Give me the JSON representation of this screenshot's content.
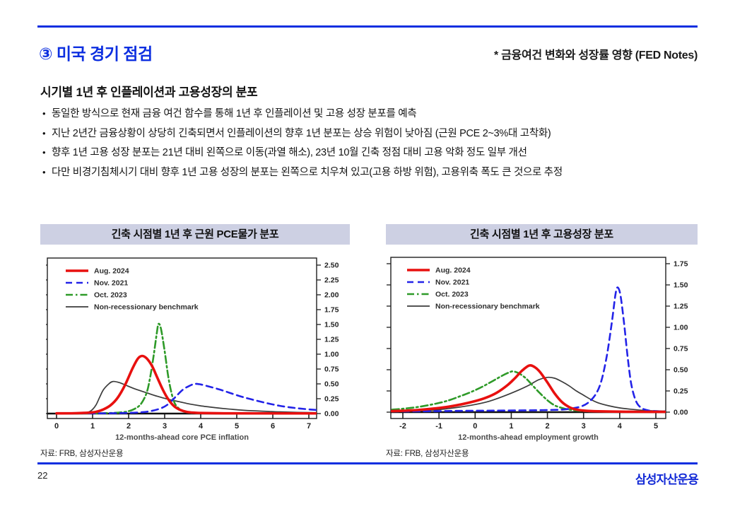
{
  "header": {
    "title": "③ 미국 경기 점검",
    "note": "* 금융여건 변화와 성장률 영향 (FED Notes)"
  },
  "subtitle": "시기별 1년 후 인플레이션과 고용성장의 분포",
  "bullets": [
    "동일한 방식으로 현재 금융 여건 함수를 통해 1년 후 인플레이션 및 고용 성장 분포를 예측",
    "지난 2년간 금융상황이 상당히 긴축되면서 인플레이션의 향후 1년 분포는 상승 위험이 낮아짐 (근원 PCE 2~3%대 고착화)",
    "향후 1년 고용 성장 분포는 21년 대비 왼쪽으로 이동(과열 해소), 23년 10월 긴축 정점 대비 고용 악화 정도 일부 개선",
    "다만 비경기침체시기 대비 향후 1년 고용 성장의 분포는 왼쪽으로 치우쳐 있고(고용 하방 위험), 고용위축 폭도 큰 것으로 추정"
  ],
  "footer": {
    "page_number": "22",
    "logo": "삼성자산운용"
  },
  "colors": {
    "accent": "#0d2fe0",
    "header_bar": "#cdd0e3",
    "series_red": "#e8100f",
    "series_blue": "#2323e8",
    "series_green": "#2e9a28",
    "series_black": "#3c3c3c"
  },
  "chart_data": [
    {
      "type": "line",
      "title": "긴축 시점별 1년 후 근원 PCE물가 분포",
      "xlabel": "12-months-ahead core PCE inflation",
      "ylabel": "",
      "source": "자료: FRB, 삼성자산운용",
      "xlim": [
        -0.27,
        7.22
      ],
      "ylim": [
        0,
        2.62
      ],
      "x_ticks": [
        0,
        1,
        2,
        3,
        4,
        5,
        6,
        7
      ],
      "y_ticks": [
        0,
        0.25,
        0.5,
        0.75,
        1.0,
        1.25,
        1.5,
        1.75,
        2.0,
        2.25,
        2.5
      ],
      "grid": false,
      "legend_position": "top-left",
      "series": [
        {
          "name": "Aug. 2024",
          "color": "#e8100f",
          "style": "solid",
          "width": 3.6,
          "points": [
            [
              0,
              0.003
            ],
            [
              0.5,
              0.006
            ],
            [
              0.9,
              0.015
            ],
            [
              1.1,
              0.03
            ],
            [
              1.3,
              0.07
            ],
            [
              1.5,
              0.14
            ],
            [
              1.7,
              0.27
            ],
            [
              1.9,
              0.48
            ],
            [
              2.1,
              0.75
            ],
            [
              2.25,
              0.92
            ],
            [
              2.37,
              0.97
            ],
            [
              2.5,
              0.93
            ],
            [
              2.65,
              0.8
            ],
            [
              2.8,
              0.6
            ],
            [
              2.95,
              0.4
            ],
            [
              3.1,
              0.24
            ],
            [
              3.25,
              0.13
            ],
            [
              3.4,
              0.07
            ],
            [
              3.6,
              0.03
            ],
            [
              3.8,
              0.015
            ],
            [
              4.0,
              0.01
            ],
            [
              4.5,
              0.005
            ],
            [
              5,
              0.003
            ],
            [
              6,
              0.002
            ],
            [
              7.2,
              0.002
            ]
          ]
        },
        {
          "name": "Nov. 2021",
          "color": "#2323e8",
          "style": "dashed",
          "width": 2.6,
          "points": [
            [
              0,
              0.002
            ],
            [
              0.8,
              0.003
            ],
            [
              1.4,
              0.005
            ],
            [
              1.9,
              0.01
            ],
            [
              2.3,
              0.02
            ],
            [
              2.6,
              0.04
            ],
            [
              2.9,
              0.09
            ],
            [
              3.1,
              0.16
            ],
            [
              3.3,
              0.28
            ],
            [
              3.5,
              0.4
            ],
            [
              3.7,
              0.47
            ],
            [
              3.84,
              0.5
            ],
            [
              4.0,
              0.49
            ],
            [
              4.2,
              0.46
            ],
            [
              4.5,
              0.41
            ],
            [
              4.8,
              0.35
            ],
            [
              5.1,
              0.29
            ],
            [
              5.4,
              0.24
            ],
            [
              5.8,
              0.18
            ],
            [
              6.2,
              0.13
            ],
            [
              6.6,
              0.095
            ],
            [
              7.0,
              0.07
            ],
            [
              7.22,
              0.06
            ]
          ]
        },
        {
          "name": "Oct. 2023",
          "color": "#2e9a28",
          "style": "dashdot",
          "width": 2.6,
          "points": [
            [
              0,
              0.002
            ],
            [
              1,
              0.004
            ],
            [
              1.5,
              0.01
            ],
            [
              1.8,
              0.02
            ],
            [
              2.0,
              0.04
            ],
            [
              2.2,
              0.09
            ],
            [
              2.35,
              0.17
            ],
            [
              2.5,
              0.35
            ],
            [
              2.6,
              0.62
            ],
            [
              2.7,
              1.0
            ],
            [
              2.78,
              1.35
            ],
            [
              2.83,
              1.51
            ],
            [
              2.9,
              1.42
            ],
            [
              3.0,
              1.05
            ],
            [
              3.1,
              0.62
            ],
            [
              3.2,
              0.32
            ],
            [
              3.3,
              0.15
            ],
            [
              3.45,
              0.06
            ],
            [
              3.6,
              0.025
            ],
            [
              3.8,
              0.01
            ],
            [
              4.2,
              0.004
            ],
            [
              5,
              0.002
            ],
            [
              7.2,
              0.002
            ]
          ]
        },
        {
          "name": "Non-recessionary benchmark",
          "color": "#3c3c3c",
          "style": "solid",
          "width": 1.7,
          "points": [
            [
              0,
              0.002
            ],
            [
              0.4,
              0.004
            ],
            [
              0.7,
              0.01
            ],
            [
              0.9,
              0.03
            ],
            [
              1.0,
              0.07
            ],
            [
              1.1,
              0.15
            ],
            [
              1.2,
              0.28
            ],
            [
              1.3,
              0.4
            ],
            [
              1.45,
              0.5
            ],
            [
              1.57,
              0.54
            ],
            [
              1.75,
              0.52
            ],
            [
              1.95,
              0.47
            ],
            [
              2.2,
              0.41
            ],
            [
              2.5,
              0.35
            ],
            [
              2.8,
              0.29
            ],
            [
              3.1,
              0.24
            ],
            [
              3.4,
              0.2
            ],
            [
              3.7,
              0.16
            ],
            [
              4.0,
              0.13
            ],
            [
              4.4,
              0.1
            ],
            [
              4.8,
              0.075
            ],
            [
              5.2,
              0.055
            ],
            [
              5.7,
              0.04
            ],
            [
              6.2,
              0.028
            ],
            [
              6.7,
              0.02
            ],
            [
              7.22,
              0.015
            ]
          ]
        }
      ]
    },
    {
      "type": "line",
      "title": "긴축 시점별 1년 후 고용성장 분포",
      "xlabel": "12-months-ahead employment growth",
      "ylabel": "",
      "source": "자료: FRB, 삼성자산운용",
      "xlim": [
        -2.33,
        5.27
      ],
      "ylim": [
        0,
        1.82
      ],
      "x_ticks": [
        -2,
        -1,
        0,
        1,
        2,
        3,
        4,
        5
      ],
      "y_ticks": [
        0,
        0.25,
        0.5,
        0.75,
        1.0,
        1.25,
        1.5,
        1.75
      ],
      "grid": false,
      "legend_position": "top-left",
      "series": [
        {
          "name": "Aug. 2024",
          "color": "#e8100f",
          "style": "solid",
          "width": 3.6,
          "points": [
            [
              -2.3,
              0.012
            ],
            [
              -2,
              0.016
            ],
            [
              -1.6,
              0.025
            ],
            [
              -1.2,
              0.04
            ],
            [
              -0.8,
              0.06
            ],
            [
              -0.4,
              0.09
            ],
            [
              0,
              0.13
            ],
            [
              0.3,
              0.17
            ],
            [
              0.6,
              0.23
            ],
            [
              0.9,
              0.32
            ],
            [
              1.1,
              0.4
            ],
            [
              1.3,
              0.49
            ],
            [
              1.5,
              0.55
            ],
            [
              1.65,
              0.53
            ],
            [
              1.8,
              0.47
            ],
            [
              2.0,
              0.35
            ],
            [
              2.2,
              0.22
            ],
            [
              2.4,
              0.12
            ],
            [
              2.6,
              0.06
            ],
            [
              2.8,
              0.03
            ],
            [
              3.0,
              0.018
            ],
            [
              3.4,
              0.01
            ],
            [
              4,
              0.006
            ],
            [
              4.6,
              0.004
            ],
            [
              5.25,
              0.003
            ]
          ]
        },
        {
          "name": "Nov. 2021",
          "color": "#2323e8",
          "style": "dashed",
          "width": 2.6,
          "points": [
            [
              -2.3,
              0.008
            ],
            [
              -1.5,
              0.01
            ],
            [
              -0.5,
              0.015
            ],
            [
              0.5,
              0.018
            ],
            [
              1.5,
              0.022
            ],
            [
              2.0,
              0.025
            ],
            [
              2.4,
              0.03
            ],
            [
              2.7,
              0.045
            ],
            [
              2.95,
              0.07
            ],
            [
              3.15,
              0.12
            ],
            [
              3.35,
              0.22
            ],
            [
              3.5,
              0.38
            ],
            [
              3.65,
              0.68
            ],
            [
              3.78,
              1.05
            ],
            [
              3.88,
              1.38
            ],
            [
              3.94,
              1.47
            ],
            [
              4.02,
              1.38
            ],
            [
              4.12,
              1.05
            ],
            [
              4.22,
              0.65
            ],
            [
              4.32,
              0.33
            ],
            [
              4.45,
              0.13
            ],
            [
              4.6,
              0.05
            ],
            [
              4.8,
              0.02
            ],
            [
              5.0,
              0.012
            ],
            [
              5.25,
              0.01
            ]
          ]
        },
        {
          "name": "Oct. 2023",
          "color": "#2e9a28",
          "style": "dashdot",
          "width": 2.6,
          "points": [
            [
              -2.3,
              0.03
            ],
            [
              -2,
              0.04
            ],
            [
              -1.6,
              0.06
            ],
            [
              -1.2,
              0.09
            ],
            [
              -0.8,
              0.13
            ],
            [
              -0.4,
              0.19
            ],
            [
              -0.1,
              0.24
            ],
            [
              0.2,
              0.3
            ],
            [
              0.5,
              0.37
            ],
            [
              0.75,
              0.43
            ],
            [
              0.95,
              0.47
            ],
            [
              1.05,
              0.48
            ],
            [
              1.2,
              0.46
            ],
            [
              1.4,
              0.4
            ],
            [
              1.6,
              0.31
            ],
            [
              1.8,
              0.22
            ],
            [
              2.0,
              0.14
            ],
            [
              2.2,
              0.08
            ],
            [
              2.4,
              0.05
            ],
            [
              2.6,
              0.03
            ],
            [
              2.9,
              0.015
            ],
            [
              3.3,
              0.008
            ],
            [
              4,
              0.004
            ],
            [
              5.25,
              0.002
            ]
          ]
        },
        {
          "name": "Non-recessionary benchmark",
          "color": "#3c3c3c",
          "style": "solid",
          "width": 1.7,
          "points": [
            [
              -2.3,
              0.006
            ],
            [
              -2,
              0.008
            ],
            [
              -1.5,
              0.015
            ],
            [
              -1,
              0.03
            ],
            [
              -0.5,
              0.055
            ],
            [
              0,
              0.09
            ],
            [
              0.4,
              0.13
            ],
            [
              0.8,
              0.19
            ],
            [
              1.2,
              0.26
            ],
            [
              1.5,
              0.32
            ],
            [
              1.75,
              0.38
            ],
            [
              2.0,
              0.41
            ],
            [
              2.2,
              0.4
            ],
            [
              2.4,
              0.36
            ],
            [
              2.6,
              0.31
            ],
            [
              2.8,
              0.25
            ],
            [
              3.0,
              0.2
            ],
            [
              3.2,
              0.15
            ],
            [
              3.4,
              0.11
            ],
            [
              3.7,
              0.075
            ],
            [
              4.0,
              0.05
            ],
            [
              4.3,
              0.035
            ],
            [
              4.7,
              0.02
            ],
            [
              5.25,
              0.012
            ]
          ]
        }
      ]
    }
  ]
}
